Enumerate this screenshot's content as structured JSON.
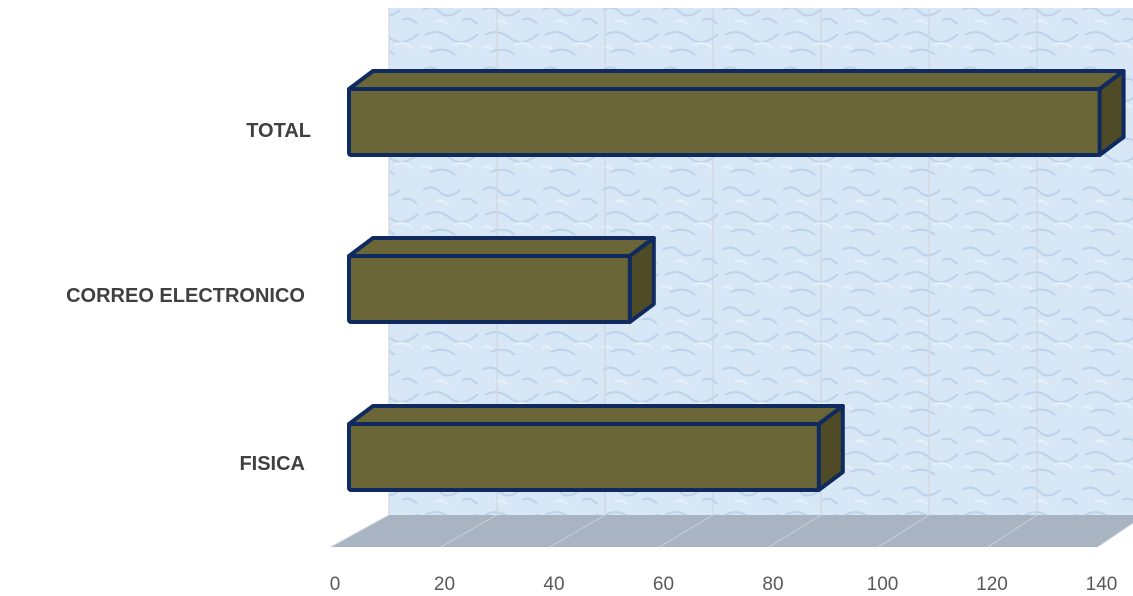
{
  "chart_data": {
    "type": "bar",
    "orientation": "horizontal",
    "style": "3d",
    "categories": [
      "TOTAL",
      "CORREO ELECTRONICO",
      "FISICA"
    ],
    "values": [
      139,
      52,
      87
    ],
    "xlim": [
      0,
      140
    ],
    "xticks": [
      "0",
      "20",
      "40",
      "60",
      "80",
      "100",
      "120",
      "140"
    ],
    "grid": true,
    "legend": "none",
    "colors": {
      "bar_fill": "#6b6637",
      "bar_side": "#4f4b27",
      "bar_edge": "#0f2a5e",
      "wall": "#d6e6f5",
      "floor": "#a8b4c2",
      "grid": "#cfd6de"
    }
  }
}
